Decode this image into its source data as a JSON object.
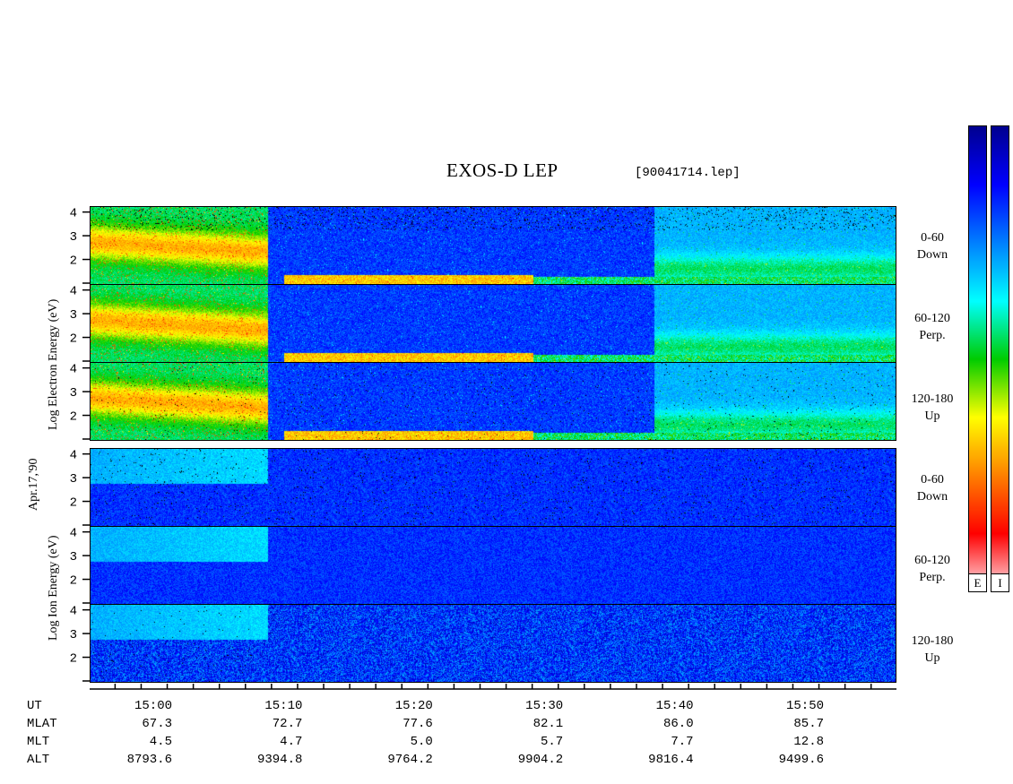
{
  "header": {
    "title": "EXOS-D LEP",
    "filename": "[90041714.lep]"
  },
  "y_labels": {
    "electron": "Log Electron Energy (eV)",
    "ion": "Log Ion Energy (eV)",
    "date": "Apr.17,'90"
  },
  "panels": [
    {
      "species": "electron",
      "pitch": "0-60",
      "dir": "Down"
    },
    {
      "species": "electron",
      "pitch": "60-120",
      "dir": "Perp."
    },
    {
      "species": "electron",
      "pitch": "120-180",
      "dir": "Up"
    },
    {
      "species": "ion",
      "pitch": "0-60",
      "dir": "Down"
    },
    {
      "species": "ion",
      "pitch": "60-120",
      "dir": "Perp."
    },
    {
      "species": "ion",
      "pitch": "120-180",
      "dir": "Up"
    }
  ],
  "colorbar": {
    "labels": [
      "E",
      "I"
    ],
    "colors": [
      "#ffe8ee",
      "#ff0000",
      "#ff8000",
      "#ffff00",
      "#00cc00",
      "#00ffff",
      "#0080ff",
      "#0000ff",
      "#000090"
    ]
  },
  "chart_data": {
    "type": "heatmap",
    "title": "EXOS-D LEP",
    "ylabel_electron": "Log Electron Energy (eV)",
    "ylabel_ion": "Log Ion Energy (eV)",
    "y_ticks": [
      "1",
      "2",
      "3",
      "4"
    ],
    "ylim": [
      1,
      4.1
    ],
    "x_range_minutes": [
      14.55,
      15.55
    ],
    "ephemeris": {
      "labels": [
        "UT",
        "MLAT",
        "MLT",
        "ALT"
      ],
      "UT": [
        "15:00",
        "15:10",
        "15:20",
        "15:30",
        "15:40",
        "15:50"
      ],
      "MLAT": [
        "67.3",
        "72.7",
        "77.6",
        "82.1",
        "86.0",
        "85.7"
      ],
      "MLT": [
        "4.5",
        "4.7",
        "5.0",
        "5.7",
        "7.7",
        "12.8"
      ],
      "ALT": [
        "8793.6",
        "9394.8",
        "9764.2",
        "9904.2",
        "9816.4",
        "9499.6"
      ]
    }
  }
}
